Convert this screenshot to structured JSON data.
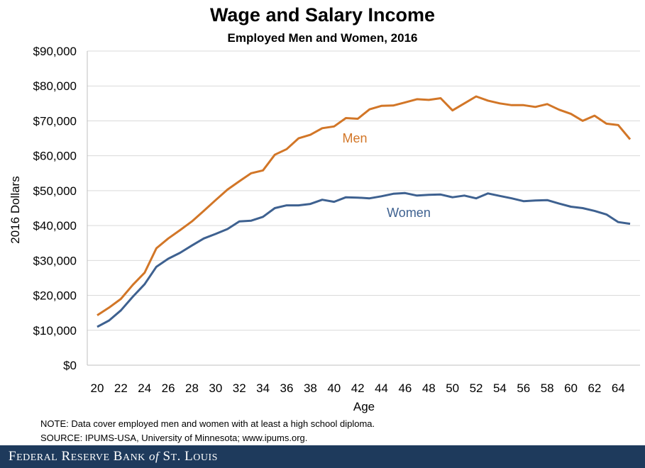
{
  "chart_data": {
    "type": "line",
    "title": "Wage and Salary Income",
    "subtitle": "Employed Men and Women, 2016",
    "xlabel": "Age",
    "ylabel": "2016 Dollars",
    "xlim": [
      20,
      65
    ],
    "ylim": [
      0,
      90000
    ],
    "x_ticks": [
      "20",
      "22",
      "24",
      "26",
      "28",
      "30",
      "32",
      "34",
      "36",
      "38",
      "40",
      "42",
      "44",
      "46",
      "48",
      "50",
      "52",
      "54",
      "56",
      "58",
      "60",
      "62",
      "64"
    ],
    "y_ticks": [
      "$0",
      "$10,000",
      "$20,000",
      "$30,000",
      "$40,000",
      "$50,000",
      "$60,000",
      "$70,000",
      "$80,000",
      "$90,000"
    ],
    "grid": true,
    "x": [
      20,
      21,
      22,
      23,
      24,
      25,
      26,
      27,
      28,
      29,
      30,
      31,
      32,
      33,
      34,
      35,
      36,
      37,
      38,
      39,
      40,
      41,
      42,
      43,
      44,
      45,
      46,
      47,
      48,
      49,
      50,
      51,
      52,
      53,
      54,
      55,
      56,
      57,
      58,
      59,
      60,
      61,
      62,
      63,
      64,
      65
    ],
    "series": [
      {
        "name": "Men",
        "color": "#d27627",
        "values": [
          14300,
          16500,
          19000,
          23000,
          26500,
          33500,
          36300,
          38700,
          41200,
          44200,
          47300,
          50300,
          52700,
          55000,
          55800,
          60300,
          61900,
          65000,
          66000,
          67900,
          68400,
          70800,
          70600,
          73300,
          74300,
          74400,
          75300,
          76200,
          76000,
          76500,
          73000,
          75000,
          77000,
          75800,
          75000,
          74500,
          74500,
          74000,
          74800,
          73200,
          72000,
          70000,
          71500,
          69200,
          68800,
          64700
        ]
      },
      {
        "name": "Women",
        "color": "#3e6190",
        "values": [
          11000,
          12800,
          15700,
          19600,
          23200,
          28200,
          30500,
          32200,
          34300,
          36300,
          37600,
          39000,
          41200,
          41400,
          42500,
          45000,
          45800,
          45800,
          46200,
          47400,
          46800,
          48100,
          48000,
          47800,
          48400,
          49100,
          49300,
          48600,
          48800,
          48900,
          48100,
          48600,
          47800,
          49200,
          48500,
          47800,
          47000,
          47200,
          47300,
          46300,
          45400,
          45000,
          44200,
          43200,
          41000,
          40500
        ]
      }
    ],
    "notes": [
      "NOTE: Data cover employed men and women with at least a high school diploma.",
      "SOURCE: IPUMS-USA,  University of Minnesota; www.ipums.org."
    ]
  },
  "footer": {
    "text": "Federal Reserve Bank of St. Louis",
    "color": "#1e3a5c"
  }
}
